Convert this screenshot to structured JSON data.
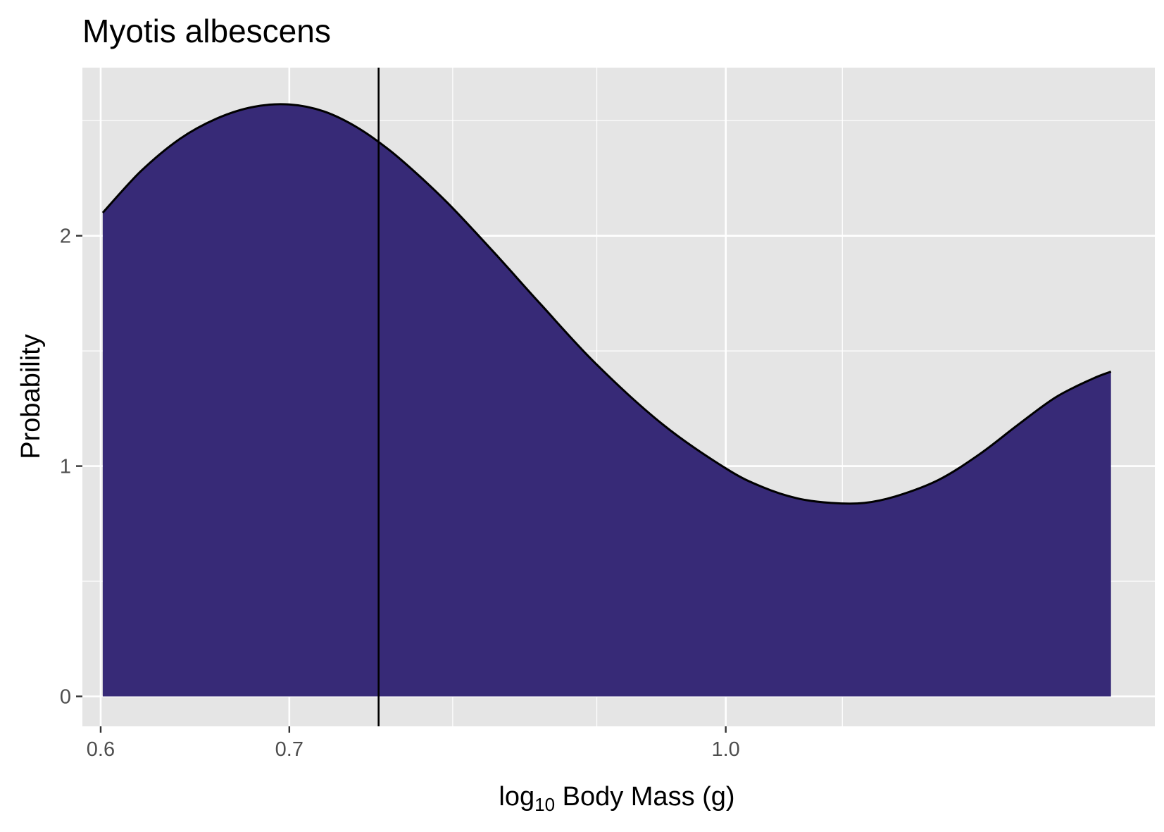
{
  "chart_data": {
    "type": "area",
    "title": "Myotis albescens",
    "xlabel": {
      "prefix": "log",
      "subscript": "10",
      "suffix": " Body Mass (g)"
    },
    "ylabel": "Probability",
    "x_scale": "log10",
    "xlim": [
      0.5911,
      1.42
    ],
    "ylim": [
      -0.13,
      2.73
    ],
    "x_ticks": [
      {
        "value": 0.6,
        "label": "0.6"
      },
      {
        "value": 0.7,
        "label": "0.7"
      },
      {
        "value": 1.0,
        "label": "1.0"
      }
    ],
    "x_minor_gridlines": [
      0.8,
      0.9,
      1.1
    ],
    "y_ticks": [
      {
        "value": 0,
        "label": "0"
      },
      {
        "value": 1,
        "label": "1"
      },
      {
        "value": 2,
        "label": "2"
      }
    ],
    "y_minor_gridlines": [
      0.5,
      1.5,
      2.5
    ],
    "grid": true,
    "legend": "none",
    "fill_color": "#372A77",
    "line_color": "#000000",
    "panel_color": "#E5E5E5",
    "vline": {
      "x": 0.753,
      "color": "#000000"
    },
    "series": [
      {
        "x": [
          0.601,
          0.62,
          0.64,
          0.66,
          0.68,
          0.7,
          0.72,
          0.74,
          0.76,
          0.78,
          0.8,
          0.83,
          0.86,
          0.9,
          0.95,
          1.0,
          1.03,
          1.06,
          1.09,
          1.12,
          1.15,
          1.19,
          1.23,
          1.27,
          1.31,
          1.35,
          1.37
        ],
        "y": [
          2.1,
          2.28,
          2.42,
          2.51,
          2.56,
          2.57,
          2.54,
          2.47,
          2.37,
          2.25,
          2.12,
          1.91,
          1.7,
          1.44,
          1.18,
          0.99,
          0.91,
          0.86,
          0.84,
          0.84,
          0.87,
          0.94,
          1.05,
          1.18,
          1.3,
          1.38,
          1.41
        ]
      }
    ]
  }
}
